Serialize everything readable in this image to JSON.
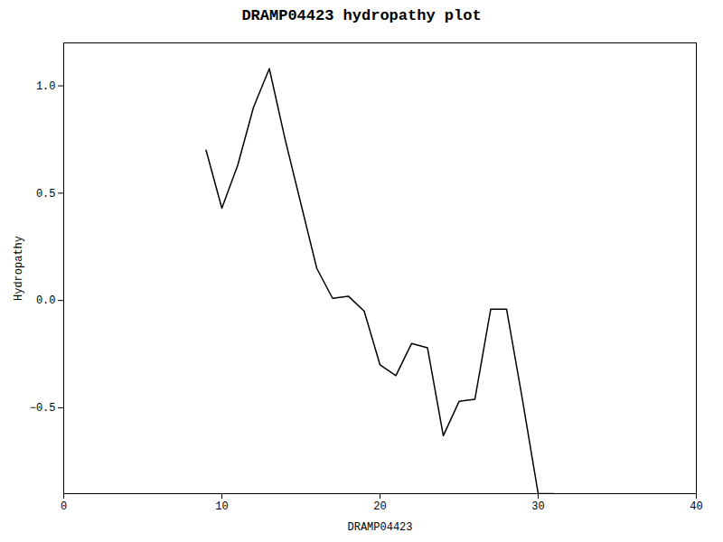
{
  "chart_data": {
    "type": "line",
    "title": "DRAMP04423 hydropathy plot",
    "xlabel": "DRAMP04423",
    "ylabel": "Hydropathy",
    "x": [
      9,
      10,
      11,
      12,
      13,
      14,
      15,
      16,
      17,
      18,
      19,
      20,
      21,
      22,
      23,
      24,
      25,
      26,
      27,
      28,
      29,
      30,
      31
    ],
    "values": [
      0.7,
      0.43,
      0.63,
      0.9,
      1.08,
      0.75,
      0.45,
      0.15,
      0.01,
      0.02,
      -0.05,
      -0.3,
      -0.35,
      -0.2,
      -0.22,
      -0.63,
      -0.47,
      -0.46,
      -0.04,
      -0.04,
      -0.46,
      -0.9,
      -0.9
    ],
    "color": "#000000",
    "xlim": [
      0,
      40
    ],
    "ylim": [
      -0.9,
      1.2
    ],
    "xticks": [
      0,
      10,
      20,
      30,
      40
    ],
    "yticks": [
      {
        "value": -0.5,
        "label": "−0.5"
      },
      {
        "value": 0,
        "label": "0.0"
      },
      0.5,
      {
        "value": 1,
        "label": "1.0"
      }
    ],
    "grid": false
  }
}
